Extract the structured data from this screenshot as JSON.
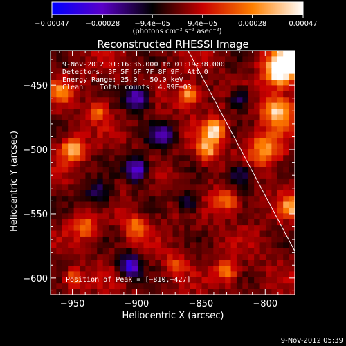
{
  "chart_data": {
    "type": "heatmap",
    "title": "Reconstructed RHESSI Image",
    "xlabel": "Heliocentric X (arcsec)",
    "ylabel": "Heliocentric Y (arcsec)",
    "xlim": [
      -967,
      -777
    ],
    "ylim": [
      -613,
      -423
    ],
    "x_ticks": [
      -950,
      -900,
      -850,
      -800
    ],
    "y_ticks": [
      -450,
      -500,
      -550,
      -600
    ],
    "x_tick_labels": [
      "−950",
      "−900",
      "−850",
      "−800"
    ],
    "y_tick_labels": [
      "−450",
      "−500",
      "−550",
      "−600"
    ],
    "colorbar": {
      "ticks": [
        -0.00047,
        -0.00028,
        -9.4e-05,
        9.4e-05,
        0.00028,
        0.00047
      ],
      "tick_labels": [
        "−0.00047",
        "−0.00028",
        "−9.4e−05",
        "9.4e−05",
        "0.00028",
        "0.00047"
      ],
      "range": [
        -0.00047,
        0.00047
      ],
      "colormap": [
        "#0000ff",
        "#5a00c8",
        "#000000",
        "#c80000",
        "#ff8000",
        "#ffffff"
      ],
      "unit_label": "(photons cm⁻² s⁻¹ asec⁻²)"
    },
    "annotations": {
      "time_range": "9-Nov-2012 01:16:36.000 to 01:19:38.000",
      "detectors": "Detectors: 3F 5F 6F 7F 8F 9F, Att 0",
      "energy": "Energy Range: 25.0 - 50.0 keV",
      "clean": "Clean    Total counts: 4.99E+03",
      "peak": "Position of Peak = [−810,−427]"
    },
    "peak_position": [
      -810,
      -427
    ],
    "limb_line": [
      [
        -860,
        -423
      ],
      [
        -777,
        -579
      ]
    ],
    "image_grid": {
      "rows": 42,
      "cols": 42,
      "hot_spots": [
        {
          "x": -780,
          "y": -430,
          "amp": 1.2,
          "s": 8
        },
        {
          "x": -790,
          "y": -440,
          "amp": 0.9,
          "s": 8
        },
        {
          "x": -790,
          "y": -470,
          "amp": 0.85,
          "s": 8
        },
        {
          "x": -800,
          "y": -500,
          "amp": 0.6,
          "s": 9
        },
        {
          "x": -840,
          "y": -485,
          "amp": 0.85,
          "s": 6
        },
        {
          "x": -845,
          "y": -500,
          "amp": 0.7,
          "s": 6
        },
        {
          "x": -860,
          "y": -458,
          "amp": 0.7,
          "s": 6
        },
        {
          "x": -950,
          "y": -500,
          "amp": 0.8,
          "s": 6
        },
        {
          "x": -960,
          "y": -455,
          "amp": 0.5,
          "s": 6
        },
        {
          "x": -930,
          "y": -470,
          "amp": 0.5,
          "s": 5
        },
        {
          "x": -830,
          "y": -540,
          "amp": 0.6,
          "s": 6
        },
        {
          "x": -780,
          "y": -545,
          "amp": 0.6,
          "s": 6
        },
        {
          "x": -900,
          "y": -560,
          "amp": 0.55,
          "s": 6
        },
        {
          "x": -940,
          "y": -560,
          "amp": 0.5,
          "s": 6
        },
        {
          "x": -830,
          "y": -595,
          "amp": 0.55,
          "s": 6
        },
        {
          "x": -870,
          "y": -590,
          "amp": 0.45,
          "s": 5
        },
        {
          "x": -950,
          "y": -600,
          "amp": 0.45,
          "s": 5
        }
      ],
      "cold_spots": [
        {
          "x": -900,
          "y": -460,
          "amp": 0.7,
          "s": 7
        },
        {
          "x": -900,
          "y": -515,
          "amp": 0.8,
          "s": 7
        },
        {
          "x": -880,
          "y": -490,
          "amp": 0.6,
          "s": 7
        },
        {
          "x": -905,
          "y": -590,
          "amp": 0.8,
          "s": 6
        },
        {
          "x": -820,
          "y": -520,
          "amp": 0.5,
          "s": 7
        },
        {
          "x": -860,
          "y": -540,
          "amp": 0.5,
          "s": 6
        },
        {
          "x": -930,
          "y": -535,
          "amp": 0.5,
          "s": 7
        },
        {
          "x": -820,
          "y": -460,
          "amp": 0.5,
          "s": 6
        }
      ]
    }
  },
  "footer": {
    "timestamp": "9-Nov-2012 05:39"
  }
}
